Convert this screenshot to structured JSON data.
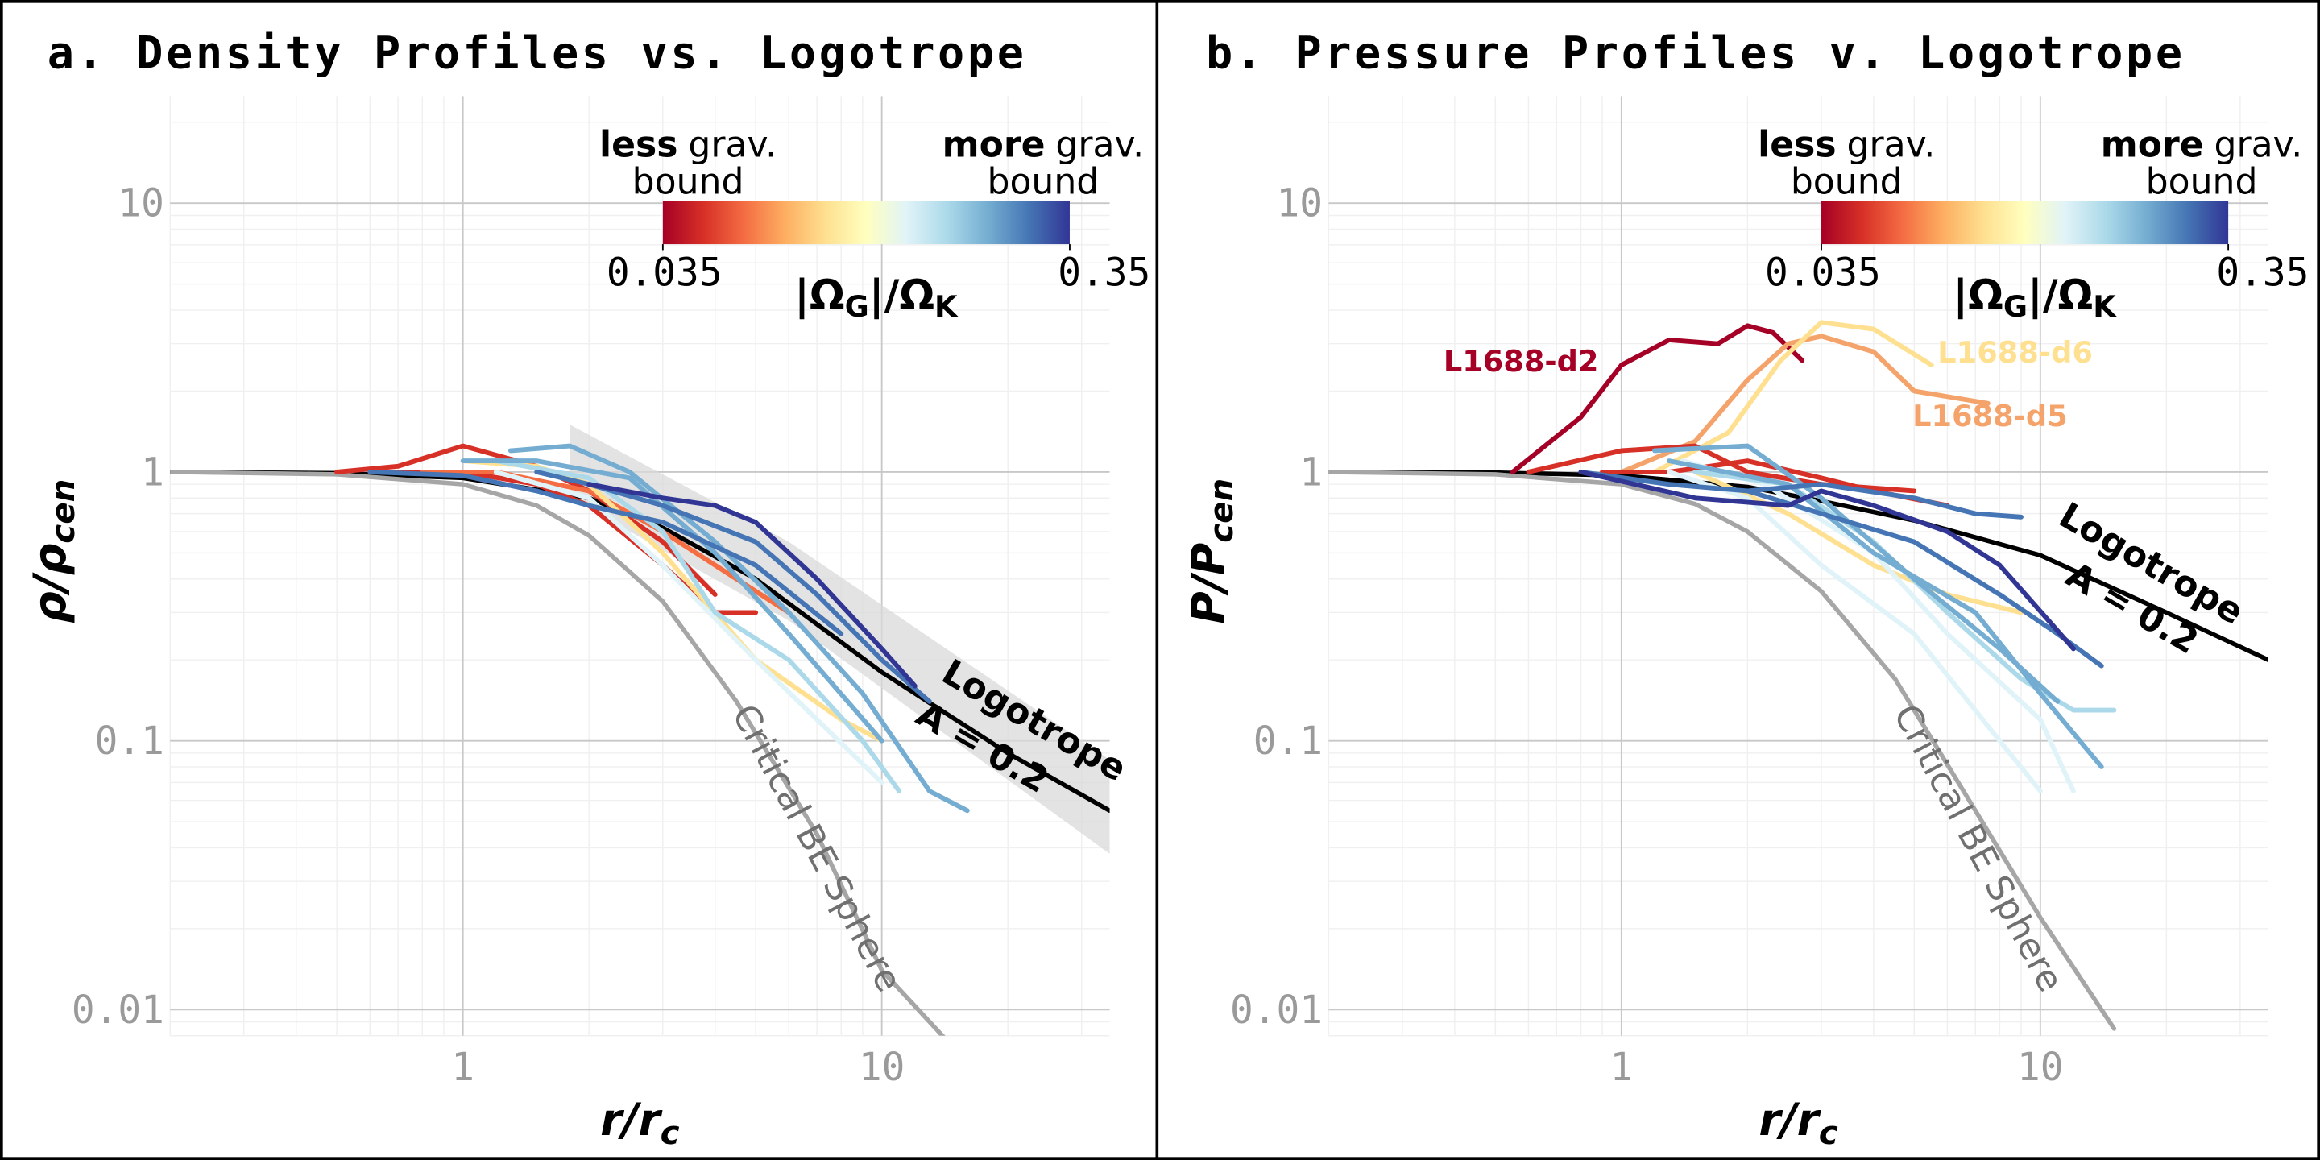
{
  "chart_data": [
    {
      "type": "line",
      "title": "a. Density Profiles vs. Logotrope",
      "xlabel": [
        "r/r",
        "c"
      ],
      "ylabel": [
        "ρ/ρ",
        "cen"
      ],
      "log_x": true,
      "log_y": true,
      "grid": true,
      "xlim": [
        0.2,
        35
      ],
      "ylim": [
        0.008,
        25
      ],
      "xticks": [
        1,
        10
      ],
      "yticks": [
        0.01,
        0.1,
        1,
        10
      ],
      "band": {
        "color": "#d9d9d9",
        "x": [
          1.8,
          6,
          35
        ],
        "lower": [
          0.8,
          0.28,
          0.038
        ],
        "upper": [
          1.5,
          0.55,
          0.085
        ]
      },
      "models": [
        {
          "color": "#000000",
          "x": [
            0.2,
            0.5,
            1,
            2,
            3,
            5,
            10,
            20,
            35
          ],
          "values": [
            1,
            0.99,
            0.95,
            0.8,
            0.62,
            0.4,
            0.18,
            0.09,
            0.055
          ]
        },
        {
          "color": "#a6a6a6",
          "x": [
            0.2,
            0.5,
            1,
            1.5,
            2,
            3,
            4.5,
            7,
            10,
            14.5
          ],
          "values": [
            1,
            0.98,
            0.9,
            0.75,
            0.58,
            0.33,
            0.14,
            0.045,
            0.014,
            0.0075
          ]
        }
      ],
      "series": [
        {
          "color": "#d73027",
          "x": [
            0.5,
            0.7,
            1,
            1.5,
            2,
            3,
            4
          ],
          "values": [
            1.0,
            1.05,
            1.25,
            1.05,
            0.85,
            0.55,
            0.35
          ]
        },
        {
          "color": "#d73027",
          "x": [
            0.6,
            1,
            1.5,
            2,
            3,
            4,
            5
          ],
          "values": [
            1,
            1.0,
            0.9,
            0.75,
            0.45,
            0.3,
            0.3
          ]
        },
        {
          "color": "#f46d43",
          "x": [
            0.8,
            1.2,
            2,
            3,
            4,
            6
          ],
          "values": [
            1.0,
            1.0,
            0.85,
            0.6,
            0.45,
            0.3
          ]
        },
        {
          "color": "#fee090",
          "x": [
            1,
            1.5,
            2,
            3,
            5,
            8,
            10
          ],
          "values": [
            1.1,
            1.05,
            0.9,
            0.5,
            0.2,
            0.12,
            0.1
          ]
        },
        {
          "color": "#e0f3f8",
          "x": [
            1.2,
            2,
            3,
            5,
            7,
            10
          ],
          "values": [
            1.0,
            0.8,
            0.45,
            0.2,
            0.12,
            0.07
          ]
        },
        {
          "color": "#abd9e9",
          "x": [
            1.2,
            2,
            3,
            4,
            6,
            9,
            11
          ],
          "values": [
            1.1,
            0.95,
            0.6,
            0.3,
            0.2,
            0.1,
            0.065
          ]
        },
        {
          "color": "#74add1",
          "x": [
            1.3,
            1.8,
            2.5,
            4,
            6,
            9,
            13,
            16
          ],
          "values": [
            1.2,
            1.25,
            1.0,
            0.55,
            0.3,
            0.15,
            0.065,
            0.055
          ]
        },
        {
          "color": "#74add1",
          "x": [
            1.0,
            1.5,
            2.5,
            4,
            6,
            10
          ],
          "values": [
            1.1,
            1.1,
            0.95,
            0.5,
            0.25,
            0.1
          ]
        },
        {
          "color": "#4575b4",
          "x": [
            1.5,
            2,
            3,
            5,
            7,
            10,
            13
          ],
          "values": [
            1.0,
            0.9,
            0.75,
            0.55,
            0.35,
            0.2,
            0.14
          ]
        },
        {
          "color": "#313695",
          "x": [
            2,
            3,
            4,
            5,
            7,
            10,
            12
          ],
          "values": [
            0.9,
            0.8,
            0.75,
            0.65,
            0.4,
            0.22,
            0.16
          ]
        },
        {
          "color": "#4575b4",
          "x": [
            0.6,
            1,
            1.5,
            2,
            3,
            5,
            8
          ],
          "values": [
            1.0,
            0.97,
            0.85,
            0.75,
            0.65,
            0.45,
            0.25
          ]
        }
      ],
      "annotations": [
        {
          "text": "Logotrope",
          "color": "#000000"
        },
        {
          "text": "A = 0.2",
          "color": "#000000"
        },
        {
          "text": "Critical BE Sphere",
          "color": "#707070"
        }
      ],
      "colorbar": {
        "colors": [
          "#a50026",
          "#d73027",
          "#f46d43",
          "#fdae61",
          "#fee090",
          "#ffffbf",
          "#e0f3f8",
          "#abd9e9",
          "#74add1",
          "#4575b4",
          "#313695"
        ],
        "ticks": [
          0.035,
          0.35
        ],
        "label": [
          "|Ω",
          "G",
          "|/Ω",
          "K"
        ],
        "left": {
          "bold": "less",
          "rest": "grav.",
          "line2": "bound"
        },
        "right": {
          "bold": "more",
          "rest": "grav.",
          "line2": "bound"
        }
      }
    },
    {
      "type": "line",
      "title": "b. Pressure Profiles v. Logotrope",
      "xlabel": [
        "r/r",
        "c"
      ],
      "ylabel": [
        "P/P",
        "cen"
      ],
      "log_x": true,
      "log_y": true,
      "grid": true,
      "xlim": [
        0.2,
        35
      ],
      "ylim": [
        0.008,
        25
      ],
      "xticks": [
        1,
        10
      ],
      "yticks": [
        0.01,
        0.1,
        1,
        10
      ],
      "models": [
        {
          "color": "#000000",
          "x": [
            0.2,
            0.5,
            1,
            2,
            3,
            5,
            10,
            20,
            35
          ],
          "values": [
            1,
            0.995,
            0.97,
            0.88,
            0.78,
            0.66,
            0.49,
            0.3,
            0.2
          ]
        },
        {
          "color": "#a6a6a6",
          "x": [
            0.2,
            0.5,
            1,
            1.5,
            2,
            3,
            4.5,
            7,
            10,
            15
          ],
          "values": [
            1,
            0.98,
            0.9,
            0.76,
            0.6,
            0.36,
            0.17,
            0.055,
            0.022,
            0.0085
          ]
        }
      ],
      "series": [
        {
          "name": "L1688-d2",
          "color": "#a50026",
          "x": [
            0.55,
            0.8,
            1,
            1.3,
            1.7,
            2,
            2.3,
            2.7
          ],
          "values": [
            1.0,
            1.6,
            2.5,
            3.1,
            3.0,
            3.5,
            3.3,
            2.6
          ]
        },
        {
          "name": "L1688-d5",
          "color": "#f4a36b",
          "x": [
            1,
            1.5,
            2,
            2.5,
            3,
            4,
            5,
            7.5
          ],
          "values": [
            1.0,
            1.3,
            2.2,
            3.0,
            3.2,
            2.8,
            2.0,
            1.8
          ]
        },
        {
          "name": "L1688-d6",
          "color": "#fee090",
          "x": [
            1.2,
            1.8,
            2.4,
            3,
            4,
            5.5
          ],
          "values": [
            1.0,
            1.4,
            2.6,
            3.6,
            3.4,
            2.5
          ]
        },
        {
          "color": "#d73027",
          "x": [
            0.6,
            1,
            1.5,
            2,
            3,
            5
          ],
          "values": [
            1.0,
            1.2,
            1.25,
            1.0,
            0.9,
            0.85
          ]
        },
        {
          "color": "#d73027",
          "x": [
            0.9,
            1.3,
            2,
            3,
            4,
            6
          ],
          "values": [
            1.0,
            1.0,
            1.1,
            0.95,
            0.85,
            0.75
          ]
        },
        {
          "color": "#fee090",
          "x": [
            1.5,
            2.5,
            4,
            6,
            9
          ],
          "values": [
            1.0,
            0.7,
            0.45,
            0.35,
            0.3
          ]
        },
        {
          "color": "#e0f3f8",
          "x": [
            1.3,
            2,
            3,
            5,
            8,
            10
          ],
          "values": [
            1.0,
            0.8,
            0.45,
            0.25,
            0.1,
            0.065
          ]
        },
        {
          "color": "#e0f3f8",
          "x": [
            1.4,
            2.2,
            4,
            6,
            10,
            12
          ],
          "values": [
            1.1,
            0.9,
            0.5,
            0.25,
            0.12,
            0.065
          ]
        },
        {
          "color": "#abd9e9",
          "x": [
            1.5,
            2.5,
            4,
            6,
            9,
            12,
            15
          ],
          "values": [
            1.0,
            0.9,
            0.55,
            0.3,
            0.17,
            0.13,
            0.13
          ]
        },
        {
          "color": "#74add1",
          "x": [
            1.2,
            2,
            3,
            5,
            8,
            11
          ],
          "values": [
            1.2,
            1.25,
            0.8,
            0.4,
            0.22,
            0.14
          ]
        },
        {
          "color": "#74add1",
          "x": [
            1.3,
            2.5,
            4,
            7,
            10,
            14
          ],
          "values": [
            1.1,
            0.9,
            0.5,
            0.3,
            0.15,
            0.08
          ]
        },
        {
          "color": "#4575b4",
          "x": [
            0.8,
            1.3,
            2,
            3,
            5,
            7,
            9
          ],
          "values": [
            1.0,
            0.9,
            0.85,
            0.9,
            0.8,
            0.7,
            0.68
          ]
        },
        {
          "color": "#4575b4",
          "x": [
            2,
            3,
            5,
            8,
            11,
            14
          ],
          "values": [
            0.85,
            0.7,
            0.55,
            0.35,
            0.25,
            0.19
          ]
        },
        {
          "color": "#313695",
          "x": [
            0.8,
            1.5,
            2.5,
            3,
            4,
            6,
            8,
            12
          ],
          "values": [
            1.0,
            0.8,
            0.75,
            0.85,
            0.75,
            0.6,
            0.45,
            0.22
          ]
        }
      ],
      "annotations": [
        {
          "text": "Logotrope",
          "color": "#000000"
        },
        {
          "text": "A = 0.2",
          "color": "#000000"
        },
        {
          "text": "Critical BE Sphere",
          "color": "#707070"
        }
      ],
      "colorbar": {
        "colors": [
          "#a50026",
          "#d73027",
          "#f46d43",
          "#fdae61",
          "#fee090",
          "#ffffbf",
          "#e0f3f8",
          "#abd9e9",
          "#74add1",
          "#4575b4",
          "#313695"
        ],
        "ticks": [
          0.035,
          0.35
        ],
        "label": [
          "|Ω",
          "G",
          "|/Ω",
          "K"
        ],
        "left": {
          "bold": "less",
          "rest": "grav.",
          "line2": "bound"
        },
        "right": {
          "bold": "more",
          "rest": "grav.",
          "line2": "bound"
        }
      }
    }
  ]
}
